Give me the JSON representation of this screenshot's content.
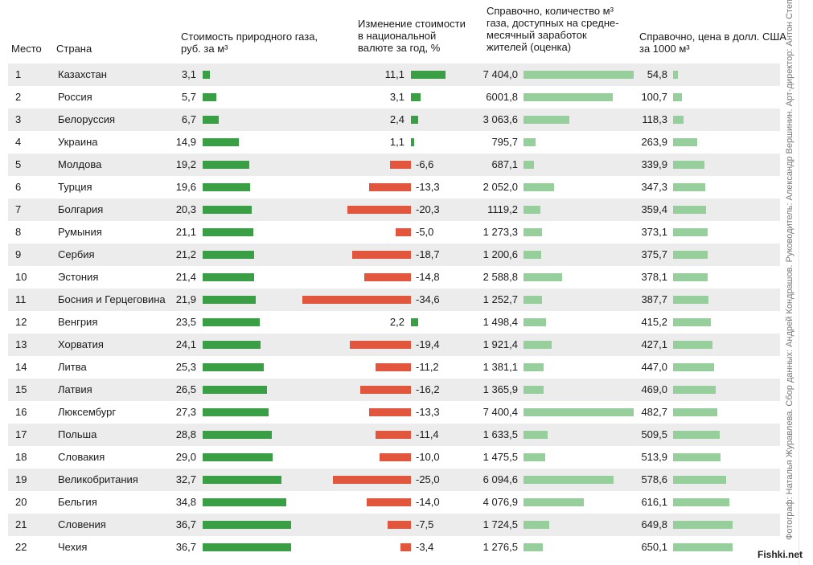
{
  "headers": {
    "rank": "Место",
    "country": "Страна",
    "price_rub": "Стоимость природного газа, руб. за м³",
    "change": "Изменение стоимости в национальной валюте за год, %",
    "affordable": "Справочно, количество м³ газа, доступных на средне-месячный заработок жителей (оценка)",
    "price_usd": "Справочно, цена в долл. США за 1000 м³"
  },
  "header_lines": {
    "price_rub": [
      "Стоимость природного газа,",
      "руб. за м³"
    ],
    "change": [
      "Изменение стоимости",
      "в национальной",
      "валюте за год, %"
    ],
    "affordable": [
      "Справочно, количество м³",
      "газа, доступных на средне-",
      "месячный заработок",
      "жителей (оценка)"
    ],
    "price_usd": [
      "Справочно, цена в долл. США",
      "за 1000 м³"
    ]
  },
  "credit": "Фотограф: Наталья Журавлева. Сбор данных: Андрей Кондрашов. Руководитель: Александр Вершинин. Арт-директор: Антон Степанов",
  "watermark": "Fishki.net",
  "colors": {
    "price_bar": "#3a9e45",
    "positive_change": "#3a9e45",
    "negative_change": "#e2563e",
    "reference_bars": "#96cf9b",
    "row_stripe": "#ececec"
  },
  "chart_data": {
    "type": "table",
    "columns": [
      "Место",
      "Страна",
      "Стоимость, руб. за м³",
      "Изменение за год, %",
      "м³ на среднемесячный заработок",
      "Цена, долл. США за 1000 м³"
    ],
    "rows": [
      {
        "rank": "1",
        "country": "Казахстан",
        "price": "3,1",
        "change": "11,1",
        "afford": "7 404,0",
        "usd": "54,8",
        "v_price": 3.1,
        "v_change": 11.1,
        "v_afford": 7404.0,
        "v_usd": 54.8
      },
      {
        "rank": "2",
        "country": "Россия",
        "price": "5,7",
        "change": "3,1",
        "afford": "6001,8",
        "usd": "100,7",
        "v_price": 5.7,
        "v_change": 3.1,
        "v_afford": 6001.8,
        "v_usd": 100.7
      },
      {
        "rank": "3",
        "country": "Белоруссия",
        "price": "6,7",
        "change": "2,4",
        "afford": "3 063,6",
        "usd": "118,3",
        "v_price": 6.7,
        "v_change": 2.4,
        "v_afford": 3063.6,
        "v_usd": 118.3
      },
      {
        "rank": "4",
        "country": "Украина",
        "price": "14,9",
        "change": "1,1",
        "afford": "795,7",
        "usd": "263,9",
        "v_price": 14.9,
        "v_change": 1.1,
        "v_afford": 795.7,
        "v_usd": 263.9
      },
      {
        "rank": "5",
        "country": "Молдова",
        "price": "19,2",
        "change": "-6,6",
        "afford": "687,1",
        "usd": "339,9",
        "v_price": 19.2,
        "v_change": -6.6,
        "v_afford": 687.1,
        "v_usd": 339.9
      },
      {
        "rank": "6",
        "country": "Турция",
        "price": "19,6",
        "change": "-13,3",
        "afford": "2 052,0",
        "usd": "347,3",
        "v_price": 19.6,
        "v_change": -13.3,
        "v_afford": 2052.0,
        "v_usd": 347.3
      },
      {
        "rank": "7",
        "country": "Болгария",
        "price": "20,3",
        "change": "-20,3",
        "afford": "1119,2",
        "usd": "359,4",
        "v_price": 20.3,
        "v_change": -20.3,
        "v_afford": 1119.2,
        "v_usd": 359.4
      },
      {
        "rank": "8",
        "country": "Румыния",
        "price": "21,1",
        "change": "-5,0",
        "afford": "1 273,3",
        "usd": "373,1",
        "v_price": 21.1,
        "v_change": -5.0,
        "v_afford": 1273.3,
        "v_usd": 373.1
      },
      {
        "rank": "9",
        "country": "Сербия",
        "price": "21,2",
        "change": "-18,7",
        "afford": "1 200,6",
        "usd": "375,7",
        "v_price": 21.2,
        "v_change": -18.7,
        "v_afford": 1200.6,
        "v_usd": 375.7
      },
      {
        "rank": "10",
        "country": "Эстония",
        "price": "21,4",
        "change": "-14,8",
        "afford": "2 588,8",
        "usd": "378,1",
        "v_price": 21.4,
        "v_change": -14.8,
        "v_afford": 2588.8,
        "v_usd": 378.1
      },
      {
        "rank": "11",
        "country": "Босния и Герцеговина",
        "price": "21,9",
        "change": "-34,6",
        "afford": "1 252,7",
        "usd": "387,7",
        "v_price": 21.9,
        "v_change": -34.6,
        "v_afford": 1252.7,
        "v_usd": 387.7
      },
      {
        "rank": "12",
        "country": "Венгрия",
        "price": "23,5",
        "change": "2,2",
        "afford": "1 498,4",
        "usd": "415,2",
        "v_price": 23.5,
        "v_change": 2.2,
        "v_afford": 1498.4,
        "v_usd": 415.2
      },
      {
        "rank": "13",
        "country": "Хорватия",
        "price": "24,1",
        "change": "-19,4",
        "afford": "1 921,4",
        "usd": "427,1",
        "v_price": 24.1,
        "v_change": -19.4,
        "v_afford": 1921.4,
        "v_usd": 427.1
      },
      {
        "rank": "14",
        "country": "Литва",
        "price": "25,3",
        "change": "-11,2",
        "afford": "1 381,1",
        "usd": "447,0",
        "v_price": 25.3,
        "v_change": -11.2,
        "v_afford": 1381.1,
        "v_usd": 447.0
      },
      {
        "rank": "15",
        "country": "Латвия",
        "price": "26,5",
        "change": "-16,2",
        "afford": "1 365,9",
        "usd": "469,0",
        "v_price": 26.5,
        "v_change": -16.2,
        "v_afford": 1365.9,
        "v_usd": 469.0
      },
      {
        "rank": "16",
        "country": "Люксембург",
        "price": "27,3",
        "change": "-13,3",
        "afford": "7 400,4",
        "usd": "482,7",
        "v_price": 27.3,
        "v_change": -13.3,
        "v_afford": 7400.4,
        "v_usd": 482.7
      },
      {
        "rank": "17",
        "country": "Польша",
        "price": "28,8",
        "change": "-11,4",
        "afford": "1 633,5",
        "usd": "509,5",
        "v_price": 28.8,
        "v_change": -11.4,
        "v_afford": 1633.5,
        "v_usd": 509.5
      },
      {
        "rank": "18",
        "country": "Словакия",
        "price": "29,0",
        "change": "-10,0",
        "afford": "1 475,5",
        "usd": "513,9",
        "v_price": 29.0,
        "v_change": -10.0,
        "v_afford": 1475.5,
        "v_usd": 513.9
      },
      {
        "rank": "19",
        "country": "Великобритания",
        "price": "32,7",
        "change": "-25,0",
        "afford": "6 094,6",
        "usd": "578,6",
        "v_price": 32.7,
        "v_change": -25.0,
        "v_afford": 6094.6,
        "v_usd": 578.6
      },
      {
        "rank": "20",
        "country": "Бельгия",
        "price": "34,8",
        "change": "-14,0",
        "afford": "4 076,9",
        "usd": "616,1",
        "v_price": 34.8,
        "v_change": -14.0,
        "v_afford": 4076.9,
        "v_usd": 616.1
      },
      {
        "rank": "21",
        "country": "Словения",
        "price": "36,7",
        "change": "-7,5",
        "afford": "1 724,5",
        "usd": "649,8",
        "v_price": 36.7,
        "v_change": -7.5,
        "v_afford": 1724.5,
        "v_usd": 649.8
      },
      {
        "rank": "22",
        "country": "Чехия",
        "price": "36,7",
        "change": "-3,4",
        "afford": "1 276,5",
        "usd": "650,1",
        "v_price": 36.7,
        "v_change": -3.4,
        "v_afford": 1276.5,
        "v_usd": 650.1
      }
    ]
  }
}
